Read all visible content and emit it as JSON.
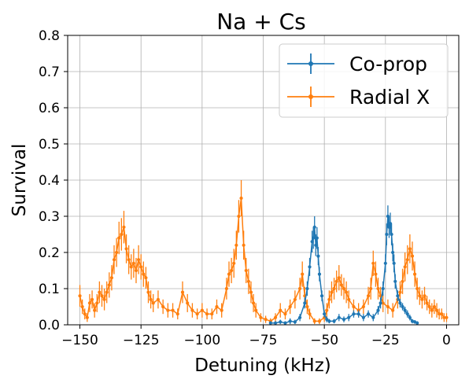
{
  "chart_data": {
    "type": "line",
    "title": "Na + Cs",
    "xlabel": "Detuning (kHz)",
    "ylabel": "Survival",
    "xlim": [
      -155,
      5
    ],
    "ylim": [
      0,
      0.8
    ],
    "xticks": [
      -150,
      -125,
      -100,
      -75,
      -50,
      -25,
      0
    ],
    "xtick_labels": [
      "−150",
      "−125",
      "−100",
      "−75",
      "−50",
      "−25",
      "0"
    ],
    "yticks": [
      0.0,
      0.1,
      0.2,
      0.3,
      0.4,
      0.5,
      0.6,
      0.7,
      0.8
    ],
    "ytick_labels": [
      "0.0",
      "0.1",
      "0.2",
      "0.3",
      "0.4",
      "0.5",
      "0.6",
      "0.7",
      "0.8"
    ],
    "grid": true,
    "legend_position": "top-right",
    "series": [
      {
        "name": "Co-prop",
        "color": "#1f77b4",
        "x": [
          -72,
          -70,
          -68,
          -66,
          -64,
          -62,
          -60,
          -58,
          -57,
          -56,
          -55,
          -54.5,
          -54,
          -53.5,
          -53,
          -52.5,
          -52,
          -51,
          -50,
          -49,
          -48,
          -46,
          -44,
          -42,
          -40,
          -38,
          -36,
          -34,
          -32,
          -30,
          -28,
          -27,
          -26,
          -25,
          -24.5,
          -24,
          -23.5,
          -23,
          -22.5,
          -22,
          -21.5,
          -21,
          -20,
          -19,
          -18,
          -17,
          -16,
          -15,
          -14,
          -13,
          -12
        ],
        "y": [
          0.005,
          0.005,
          0.008,
          0.005,
          0.01,
          0.008,
          0.02,
          0.06,
          0.1,
          0.16,
          0.23,
          0.24,
          0.27,
          0.22,
          0.24,
          0.19,
          0.14,
          0.08,
          0.03,
          0.015,
          0.01,
          0.01,
          0.02,
          0.015,
          0.02,
          0.03,
          0.03,
          0.02,
          0.03,
          0.02,
          0.04,
          0.06,
          0.1,
          0.17,
          0.25,
          0.3,
          0.27,
          0.28,
          0.25,
          0.2,
          0.17,
          0.12,
          0.08,
          0.06,
          0.05,
          0.04,
          0.03,
          0.02,
          0.01,
          0.008,
          0.005
        ],
        "err": [
          0.005,
          0.005,
          0.006,
          0.005,
          0.008,
          0.006,
          0.01,
          0.015,
          0.02,
          0.025,
          0.03,
          0.03,
          0.03,
          0.03,
          0.03,
          0.025,
          0.02,
          0.015,
          0.01,
          0.008,
          0.006,
          0.006,
          0.01,
          0.008,
          0.01,
          0.01,
          0.01,
          0.01,
          0.01,
          0.01,
          0.012,
          0.015,
          0.02,
          0.025,
          0.03,
          0.03,
          0.03,
          0.03,
          0.03,
          0.025,
          0.025,
          0.02,
          0.015,
          0.012,
          0.01,
          0.01,
          0.01,
          0.008,
          0.006,
          0.005,
          0.005
        ]
      },
      {
        "name": "Radial X",
        "color": "#ff7f0e",
        "x": [
          -150,
          -149,
          -148,
          -147,
          -146,
          -145,
          -144,
          -143,
          -142,
          -141,
          -140,
          -139,
          -138,
          -137,
          -136,
          -135,
          -134,
          -133,
          -132,
          -131,
          -130,
          -129,
          -128,
          -127,
          -126,
          -125,
          -124,
          -123,
          -122,
          -121,
          -120,
          -118,
          -116,
          -114,
          -112,
          -110,
          -108,
          -106,
          -104,
          -102,
          -100,
          -98,
          -96,
          -94,
          -92,
          -90,
          -89,
          -88,
          -87,
          -86,
          -85,
          -84,
          -83,
          -82,
          -81,
          -80,
          -79,
          -78,
          -76,
          -74,
          -72,
          -70,
          -68,
          -66,
          -64,
          -62,
          -60,
          -59,
          -58,
          -57,
          -56,
          -54,
          -52,
          -50,
          -49,
          -48,
          -47,
          -46,
          -45,
          -44,
          -43,
          -42,
          -41,
          -40,
          -38,
          -36,
          -34,
          -32,
          -31,
          -30,
          -29,
          -28,
          -27,
          -26,
          -24,
          -22,
          -20,
          -19,
          -18,
          -17,
          -16,
          -15,
          -14,
          -13,
          -12,
          -11,
          -10,
          -9,
          -8,
          -7,
          -6,
          -5,
          -4,
          -3,
          -2,
          -1,
          0
        ],
        "y": [
          0.08,
          0.05,
          0.03,
          0.02,
          0.06,
          0.07,
          0.04,
          0.06,
          0.09,
          0.08,
          0.07,
          0.09,
          0.11,
          0.13,
          0.18,
          0.2,
          0.24,
          0.25,
          0.27,
          0.21,
          0.18,
          0.16,
          0.17,
          0.15,
          0.18,
          0.16,
          0.14,
          0.13,
          0.09,
          0.07,
          0.06,
          0.07,
          0.05,
          0.04,
          0.04,
          0.03,
          0.09,
          0.06,
          0.04,
          0.03,
          0.04,
          0.03,
          0.03,
          0.05,
          0.04,
          0.1,
          0.14,
          0.15,
          0.17,
          0.22,
          0.3,
          0.35,
          0.22,
          0.15,
          0.12,
          0.09,
          0.06,
          0.04,
          0.02,
          0.015,
          0.01,
          0.02,
          0.04,
          0.03,
          0.05,
          0.07,
          0.1,
          0.14,
          0.08,
          0.05,
          0.03,
          0.01,
          0.01,
          0.02,
          0.04,
          0.07,
          0.09,
          0.1,
          0.12,
          0.13,
          0.11,
          0.1,
          0.09,
          0.07,
          0.05,
          0.04,
          0.05,
          0.08,
          0.1,
          0.17,
          0.14,
          0.1,
          0.08,
          0.06,
          0.05,
          0.04,
          0.07,
          0.09,
          0.12,
          0.16,
          0.18,
          0.21,
          0.19,
          0.14,
          0.1,
          0.08,
          0.07,
          0.08,
          0.06,
          0.05,
          0.04,
          0.05,
          0.04,
          0.03,
          0.03,
          0.02,
          0.02
        ],
        "err": [
          0.03,
          0.02,
          0.015,
          0.012,
          0.025,
          0.025,
          0.02,
          0.025,
          0.03,
          0.03,
          0.03,
          0.03,
          0.035,
          0.035,
          0.04,
          0.04,
          0.045,
          0.045,
          0.045,
          0.04,
          0.04,
          0.035,
          0.04,
          0.035,
          0.04,
          0.035,
          0.035,
          0.03,
          0.03,
          0.025,
          0.025,
          0.025,
          0.02,
          0.02,
          0.02,
          0.015,
          0.03,
          0.025,
          0.02,
          0.015,
          0.02,
          0.015,
          0.015,
          0.02,
          0.02,
          0.03,
          0.035,
          0.035,
          0.04,
          0.04,
          0.045,
          0.05,
          0.04,
          0.035,
          0.035,
          0.03,
          0.025,
          0.02,
          0.012,
          0.01,
          0.008,
          0.012,
          0.02,
          0.015,
          0.02,
          0.025,
          0.03,
          0.035,
          0.025,
          0.02,
          0.015,
          0.008,
          0.008,
          0.012,
          0.02,
          0.025,
          0.03,
          0.03,
          0.03,
          0.035,
          0.03,
          0.03,
          0.03,
          0.025,
          0.02,
          0.02,
          0.02,
          0.025,
          0.03,
          0.035,
          0.035,
          0.03,
          0.025,
          0.025,
          0.02,
          0.02,
          0.025,
          0.03,
          0.035,
          0.04,
          0.04,
          0.04,
          0.04,
          0.035,
          0.03,
          0.025,
          0.025,
          0.025,
          0.02,
          0.02,
          0.02,
          0.02,
          0.02,
          0.015,
          0.015,
          0.012,
          0.012
        ]
      }
    ]
  }
}
